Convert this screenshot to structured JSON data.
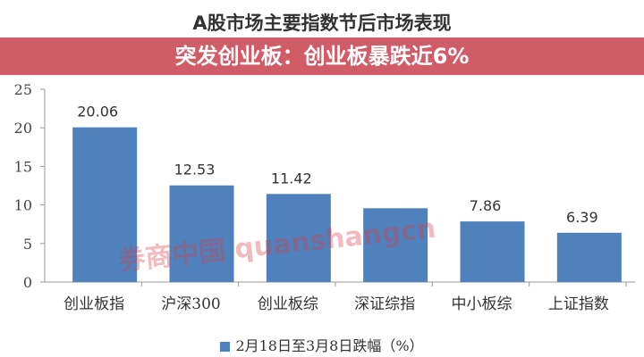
{
  "chart_data": {
    "type": "bar",
    "title": "A股市场主要指数节后市场表现",
    "categories": [
      "创业板指",
      "沪深300",
      "创业板综",
      "深证综指",
      "中小板综",
      "上证指数"
    ],
    "series": [
      {
        "name": "2月18日至3月8日跌幅（%）",
        "values": [
          20.06,
          12.53,
          11.42,
          9.57,
          7.86,
          6.39
        ],
        "color": "#4f81bd"
      }
    ],
    "data_labels": [
      "20.06",
      "12.53",
      "11.42",
      "",
      "7.86",
      "6.39"
    ],
    "ylim": [
      0,
      25
    ],
    "yticks": [
      "0",
      "5",
      "10",
      "15",
      "20",
      "25"
    ],
    "grid": false,
    "legend": "bottom"
  },
  "banner": {
    "text": "突发创业板：创业板暴跌近6%",
    "color": "#c43844"
  },
  "watermark": "券商中国 quanshangcn"
}
